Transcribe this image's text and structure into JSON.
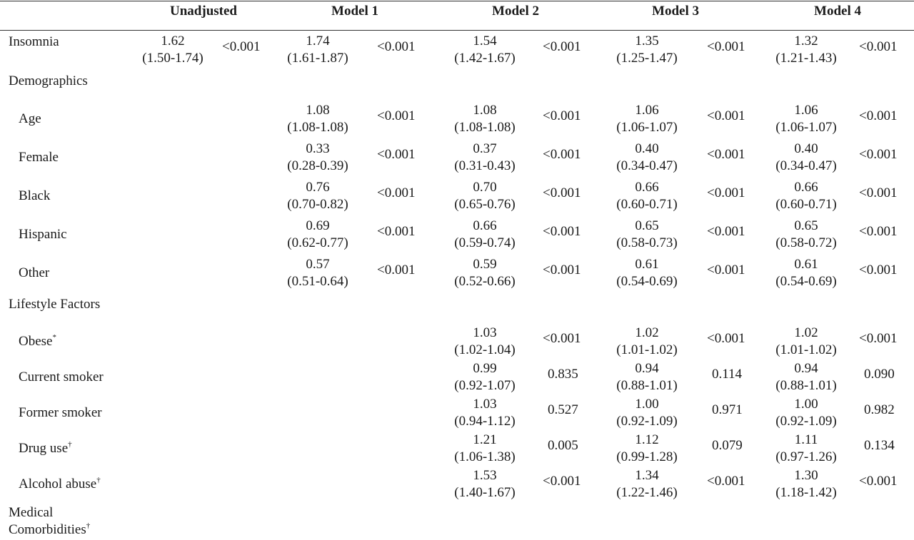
{
  "headers": [
    "Unadjusted",
    "Model 1",
    "Model 2",
    "Model 3",
    "Model 4"
  ],
  "rows": [
    {
      "label": "Insomnia",
      "sup": "",
      "cells": [
        {
          "or": "1.62",
          "ci": "(1.50-1.74)",
          "p": "<0.001"
        },
        {
          "or": "1.74",
          "ci": "(1.61-1.87)",
          "p": "<0.001"
        },
        {
          "or": "1.54",
          "ci": "(1.42-1.67)",
          "p": "<0.001"
        },
        {
          "or": "1.35",
          "ci": "(1.25-1.47)",
          "p": "<0.001"
        },
        {
          "or": "1.32",
          "ci": "(1.21-1.43)",
          "p": "<0.001"
        }
      ]
    },
    {
      "label": "Demographics",
      "section": true
    },
    {
      "label": "Age",
      "sup": "",
      "cells": [
        null,
        {
          "or": "1.08",
          "ci": "(1.08-1.08)",
          "p": "<0.001"
        },
        {
          "or": "1.08",
          "ci": "(1.08-1.08)",
          "p": "<0.001"
        },
        {
          "or": "1.06",
          "ci": "(1.06-1.07)",
          "p": "<0.001"
        },
        {
          "or": "1.06",
          "ci": "(1.06-1.07)",
          "p": "<0.001"
        }
      ]
    },
    {
      "label": "Female",
      "sup": "",
      "cells": [
        null,
        {
          "or": "0.33",
          "ci": "(0.28-0.39)",
          "p": "<0.001"
        },
        {
          "or": "0.37",
          "ci": "(0.31-0.43)",
          "p": "<0.001"
        },
        {
          "or": "0.40",
          "ci": "(0.34-0.47)",
          "p": "<0.001"
        },
        {
          "or": "0.40",
          "ci": "(0.34-0.47)",
          "p": "<0.001"
        }
      ]
    },
    {
      "label": "Black",
      "sup": "",
      "cells": [
        null,
        {
          "or": "0.76",
          "ci": "(0.70-0.82)",
          "p": "<0.001"
        },
        {
          "or": "0.70",
          "ci": "(0.65-0.76)",
          "p": "<0.001"
        },
        {
          "or": "0.66",
          "ci": "(0.60-0.71)",
          "p": "<0.001"
        },
        {
          "or": "0.66",
          "ci": "(0.60-0.71)",
          "p": "<0.001"
        }
      ]
    },
    {
      "label": "Hispanic",
      "sup": "",
      "cells": [
        null,
        {
          "or": "0.69",
          "ci": "(0.62-0.77)",
          "p": "<0.001"
        },
        {
          "or": "0.66",
          "ci": "(0.59-0.74)",
          "p": "<0.001"
        },
        {
          "or": "0.65",
          "ci": "(0.58-0.73)",
          "p": "<0.001"
        },
        {
          "or": "0.65",
          "ci": "(0.58-0.72)",
          "p": "<0.001"
        }
      ]
    },
    {
      "label": "Other",
      "sup": "",
      "cells": [
        null,
        {
          "or": "0.57",
          "ci": "(0.51-0.64)",
          "p": "<0.001"
        },
        {
          "or": "0.59",
          "ci": "(0.52-0.66)",
          "p": "<0.001"
        },
        {
          "or": "0.61",
          "ci": "(0.54-0.69)",
          "p": "<0.001"
        },
        {
          "or": "0.61",
          "ci": "(0.54-0.69)",
          "p": "<0.001"
        }
      ]
    },
    {
      "label": "Lifestyle Factors",
      "section": true
    },
    {
      "label": "Obese",
      "sup": "*",
      "cells": [
        null,
        null,
        {
          "or": "1.03",
          "ci": "(1.02-1.04)",
          "p": "<0.001"
        },
        {
          "or": "1.02",
          "ci": "(1.01-1.02)",
          "p": "<0.001"
        },
        {
          "or": "1.02",
          "ci": "(1.01-1.02)",
          "p": "<0.001"
        }
      ]
    },
    {
      "label": "Current smoker",
      "sup": "",
      "cells": [
        null,
        null,
        {
          "or": "0.99",
          "ci": "(0.92-1.07)",
          "p": "0.835"
        },
        {
          "or": "0.94",
          "ci": "(0.88-1.01)",
          "p": "0.114"
        },
        {
          "or": "0.94",
          "ci": "(0.88-1.01)",
          "p": "0.090"
        }
      ]
    },
    {
      "label": "Former smoker",
      "sup": "",
      "cells": [
        null,
        null,
        {
          "or": "1.03",
          "ci": "(0.94-1.12)",
          "p": "0.527"
        },
        {
          "or": "1.00",
          "ci": "(0.92-1.09)",
          "p": "0.971"
        },
        {
          "or": "1.00",
          "ci": "(0.92-1.09)",
          "p": "0.982"
        }
      ]
    },
    {
      "label": "Drug use",
      "sup": "†",
      "cells": [
        null,
        null,
        {
          "or": "1.21",
          "ci": "(1.06-1.38)",
          "p": "0.005"
        },
        {
          "or": "1.12",
          "ci": "(0.99-1.28)",
          "p": "0.079"
        },
        {
          "or": "1.11",
          "ci": "(0.97-1.26)",
          "p": "0.134"
        }
      ]
    },
    {
      "label": "Alcohol abuse",
      "sup": "†",
      "cells": [
        null,
        null,
        {
          "or": "1.53",
          "ci": "(1.40-1.67)",
          "p": "<0.001"
        },
        {
          "or": "1.34",
          "ci": "(1.22-1.46)",
          "p": "<0.001"
        },
        {
          "or": "1.30",
          "ci": "(1.18-1.42)",
          "p": "<0.001"
        }
      ]
    },
    {
      "label": "Medical",
      "label2": "Comorbidities",
      "sup": "†",
      "section": true
    }
  ]
}
